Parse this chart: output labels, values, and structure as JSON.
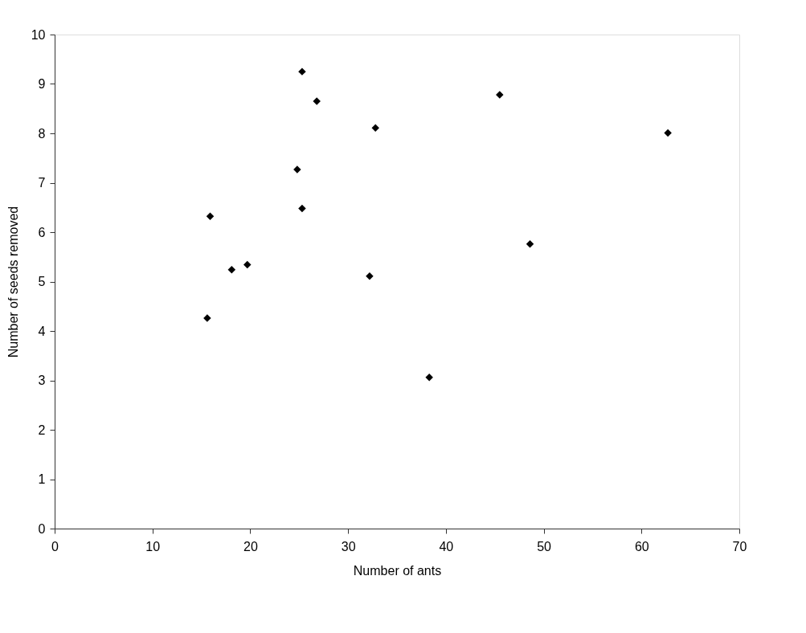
{
  "chart_data": {
    "type": "scatter",
    "xlabel": "Number of ants",
    "ylabel": "Number of seeds removed",
    "x": [
      15.6,
      15.9,
      18.1,
      19.7,
      24.8,
      25.3,
      25.3,
      26.8,
      32.2,
      32.8,
      38.3,
      45.5,
      48.6,
      62.7
    ],
    "series": [
      {
        "color": "#000000",
        "values": [
          4.26,
          6.32,
          5.24,
          5.34,
          7.27,
          9.25,
          6.48,
          8.65,
          5.11,
          8.11,
          3.06,
          8.78,
          5.76,
          8.01
        ]
      }
    ],
    "xlim": [
      0,
      70
    ],
    "xticks": [
      0,
      10,
      20,
      30,
      40,
      50,
      60,
      70
    ],
    "ylim": [
      0,
      10
    ],
    "yticks": [
      0,
      1,
      2,
      3,
      4,
      5,
      6,
      7,
      8,
      9,
      10
    ],
    "grid": false,
    "legend": false,
    "marker": "diamond"
  }
}
